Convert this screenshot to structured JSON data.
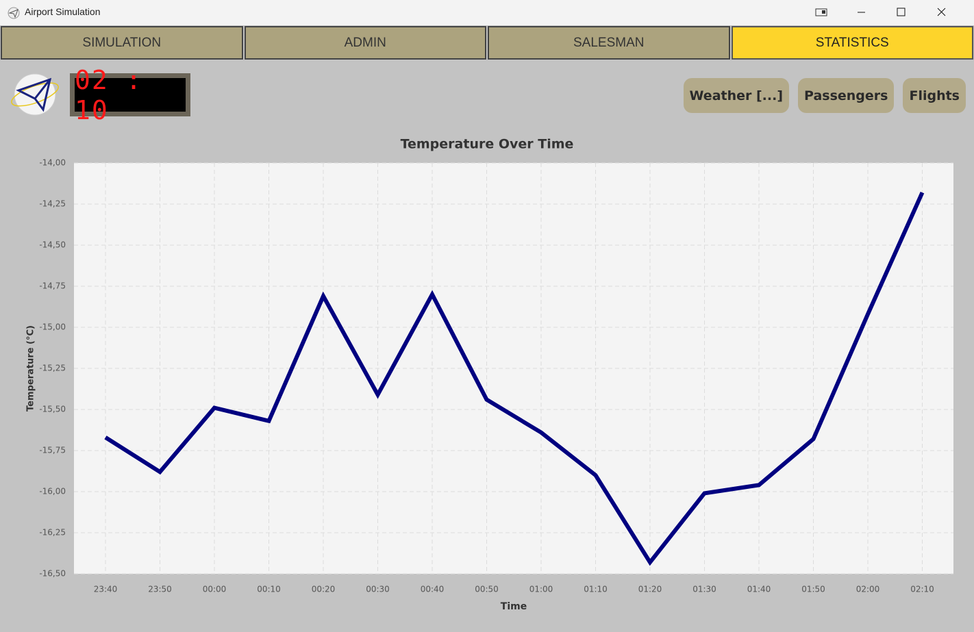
{
  "window": {
    "title": "Airport Simulation"
  },
  "tabs": [
    "SIMULATION",
    "ADMIN",
    "SALESMAN",
    "STATISTICS"
  ],
  "active_tab": 3,
  "clock": "02 : 10",
  "buttons": [
    "Weather [...]",
    "Passengers",
    "Flights"
  ],
  "chart_data": {
    "type": "line",
    "title": "Temperature Over Time",
    "x_label": "Time",
    "y_label": "Temperature (°C)",
    "categories": [
      "23:40",
      "23:50",
      "00:00",
      "00:10",
      "00:20",
      "00:30",
      "00:40",
      "00:50",
      "01:00",
      "01:10",
      "01:20",
      "01:30",
      "01:40",
      "01:50",
      "02:00",
      "02:10"
    ],
    "values": [
      -15.67,
      -15.88,
      -15.49,
      -15.57,
      -14.81,
      -15.41,
      -14.8,
      -15.44,
      -15.64,
      -15.9,
      -16.43,
      -16.01,
      -15.96,
      -15.68,
      -14.92,
      -14.18
    ],
    "color": "#000080",
    "ylim": [
      -16.5,
      -14.0
    ],
    "yticks": [
      {
        "value": -16.5,
        "label": "-16,50"
      },
      {
        "value": -16.25,
        "label": "-16,25"
      },
      {
        "value": -16.0,
        "label": "-16,00"
      },
      {
        "value": -15.75,
        "label": "-15,75"
      },
      {
        "value": -15.5,
        "label": "-15,50"
      },
      {
        "value": -15.25,
        "label": "-15,25"
      },
      {
        "value": -15.0,
        "label": "-15,00"
      },
      {
        "value": -14.75,
        "label": "-14,75"
      },
      {
        "value": -14.5,
        "label": "-14,50"
      },
      {
        "value": -14.25,
        "label": "-14,25"
      },
      {
        "value": -14.0,
        "label": "-14,00"
      }
    ],
    "grid": true
  }
}
